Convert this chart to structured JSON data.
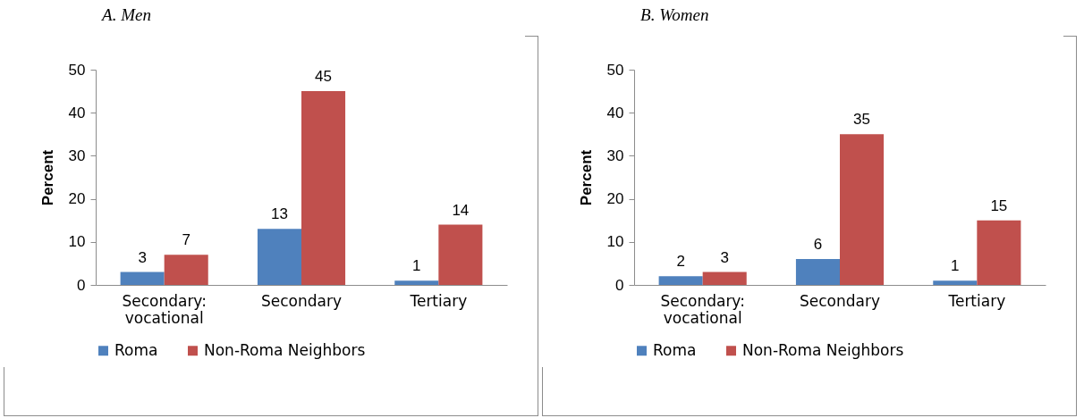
{
  "chart_data": [
    {
      "type": "bar",
      "title": "A. Men",
      "ylabel": "Percent",
      "categories": [
        "Secondary: vocational",
        "Secondary",
        "Tertiary"
      ],
      "series": [
        {
          "name": "Roma",
          "color": "#4f81bd",
          "values": [
            3,
            13,
            1
          ]
        },
        {
          "name": "Non-Roma Neighbors",
          "color": "#c0504d",
          "values": [
            7,
            45,
            14
          ]
        }
      ],
      "ylim": [
        0,
        50
      ],
      "yticks": [
        0,
        10,
        20,
        30,
        40,
        50
      ],
      "grid": false,
      "legend": "bottom",
      "data_labels": true
    },
    {
      "type": "bar",
      "title": "B. Women",
      "ylabel": "Percent",
      "categories": [
        "Secondary: vocational",
        "Secondary",
        "Tertiary"
      ],
      "series": [
        {
          "name": "Roma",
          "color": "#4f81bd",
          "values": [
            2,
            6,
            1
          ]
        },
        {
          "name": "Non-Roma Neighbors",
          "color": "#c0504d",
          "values": [
            3,
            35,
            15
          ]
        }
      ],
      "ylim": [
        0,
        50
      ],
      "yticks": [
        0,
        10,
        20,
        30,
        40,
        50
      ],
      "grid": false,
      "legend": "bottom",
      "data_labels": true
    }
  ]
}
